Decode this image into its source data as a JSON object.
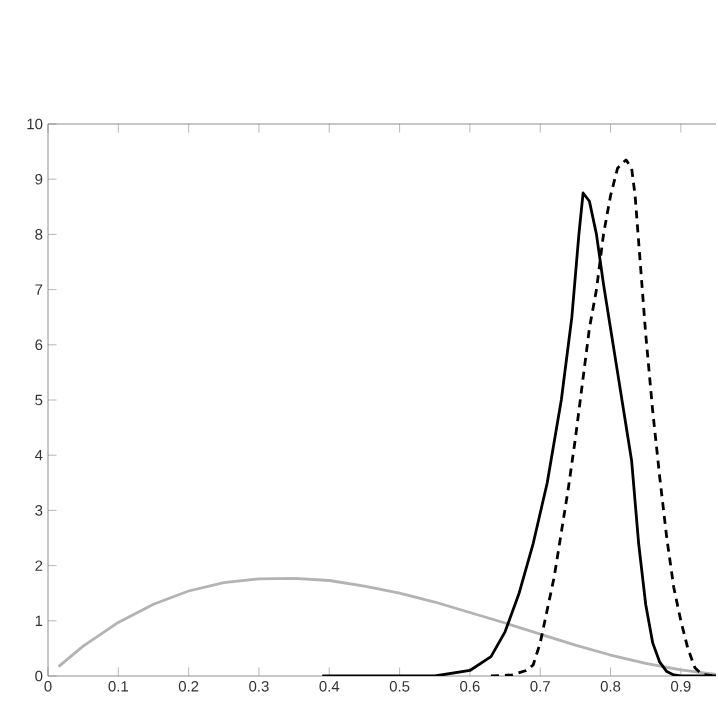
{
  "chart_data": {
    "type": "line",
    "xlim": [
      0,
      0.95
    ],
    "ylim": [
      0,
      10
    ],
    "xticks": [
      0,
      0.1,
      0.2,
      0.3,
      0.4,
      0.5,
      0.6,
      0.7,
      0.8,
      0.9
    ],
    "yticks": [
      0,
      1,
      2,
      3,
      4,
      5,
      6,
      7,
      8,
      9,
      10
    ],
    "grid": false,
    "marker": "none",
    "series": [
      {
        "color": "#b3b3b3",
        "line_style": "solid",
        "x": [
          0.015,
          0.05,
          0.1,
          0.15,
          0.2,
          0.25,
          0.3,
          0.35,
          0.4,
          0.45,
          0.5,
          0.55,
          0.6,
          0.65,
          0.7,
          0.75,
          0.8,
          0.85,
          0.9,
          0.95
        ],
        "values": [
          0.17,
          0.54,
          0.97,
          1.3,
          1.54,
          1.69,
          1.76,
          1.77,
          1.73,
          1.63,
          1.5,
          1.34,
          1.15,
          0.96,
          0.76,
          0.56,
          0.38,
          0.23,
          0.11,
          0.03
        ]
      },
      {
        "color": "#000000",
        "line_style": "solid",
        "x": [
          0.39,
          0.55,
          0.6,
          0.63,
          0.65,
          0.67,
          0.69,
          0.71,
          0.73,
          0.745,
          0.755,
          0.761,
          0.77,
          0.78,
          0.79,
          0.8,
          0.81,
          0.82,
          0.83,
          0.84,
          0.85,
          0.86,
          0.87,
          0.88,
          0.89,
          0.9,
          0.95
        ],
        "values": [
          0,
          0,
          0.1,
          0.35,
          0.8,
          1.5,
          2.4,
          3.5,
          5.0,
          6.5,
          8.0,
          8.75,
          8.6,
          8.0,
          7.1,
          6.3,
          5.5,
          4.7,
          3.9,
          2.4,
          1.3,
          0.6,
          0.25,
          0.08,
          0.02,
          0,
          0
        ]
      },
      {
        "color": "#000000",
        "line_style": "dashed",
        "x": [
          0.63,
          0.66,
          0.68,
          0.69,
          0.7,
          0.71,
          0.72,
          0.73,
          0.74,
          0.75,
          0.76,
          0.77,
          0.78,
          0.79,
          0.8,
          0.81,
          0.822,
          0.83,
          0.835,
          0.85,
          0.86,
          0.87,
          0.88,
          0.89,
          0.9,
          0.91,
          0.92,
          0.93,
          0.95
        ],
        "values": [
          0,
          0.02,
          0.1,
          0.2,
          0.6,
          1.2,
          1.8,
          2.6,
          3.4,
          4.3,
          5.3,
          6.3,
          7.0,
          8.0,
          8.7,
          9.2,
          9.35,
          9.2,
          8.7,
          6.2,
          4.8,
          3.6,
          2.5,
          1.6,
          1.0,
          0.5,
          0.15,
          0.03,
          0
        ]
      }
    ]
  }
}
